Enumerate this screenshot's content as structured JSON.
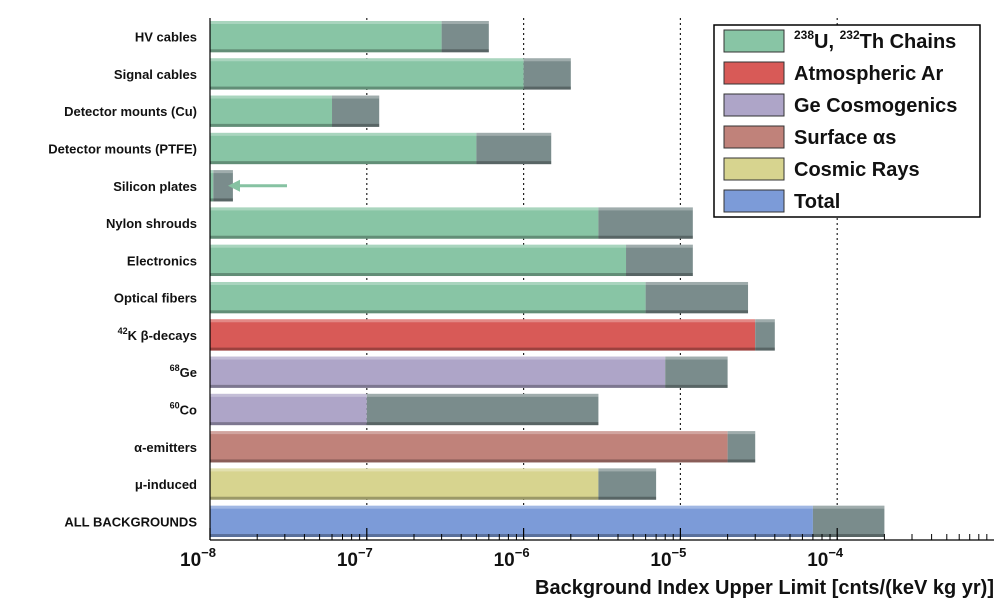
{
  "chart_data": {
    "type": "bar",
    "orientation": "horizontal",
    "x_scale": "log",
    "xlim": [
      1e-08,
      0.001
    ],
    "xlabel": "Background Index Upper Limit [cnts/(keV kg yr)]",
    "x_ticks": [
      {
        "base": "10",
        "exp": "−8"
      },
      {
        "base": "10",
        "exp": "−7"
      },
      {
        "base": "10",
        "exp": "−6"
      },
      {
        "base": "10",
        "exp": "−5"
      },
      {
        "base": "10",
        "exp": "−4"
      }
    ],
    "grid": "vertical dotted lines at decades",
    "legend_position": "top-right",
    "legend": [
      {
        "label": "238U, 232Th Chains",
        "color": "#88c5a5",
        "pre": "",
        "sup1": "238",
        "mid": "U, ",
        "sup2": "232",
        "post": "Th Chains"
      },
      {
        "label": "Atmospheric Ar",
        "color": "#d85a57",
        "pre": "Atmospheric Ar",
        "sup1": "",
        "mid": "",
        "sup2": "",
        "post": ""
      },
      {
        "label": "Ge Cosmogenics",
        "color": "#aea5c8",
        "pre": "Ge Cosmogenics",
        "sup1": "",
        "mid": "",
        "sup2": "",
        "post": ""
      },
      {
        "label": "Surface αs",
        "color": "#c0827a",
        "pre": "Surface αs",
        "sup1": "",
        "mid": "",
        "sup2": "",
        "post": ""
      },
      {
        "label": "Cosmic Rays",
        "color": "#d7d48f",
        "pre": "Cosmic Rays",
        "sup1": "",
        "mid": "",
        "sup2": "",
        "post": ""
      },
      {
        "label": "Total",
        "color": "#7c9bd8",
        "pre": "Total",
        "sup1": "",
        "mid": "",
        "sup2": "",
        "post": ""
      }
    ],
    "uncertainty_color": "#7a8c8c",
    "categories": [
      {
        "sup": "",
        "text": "HV cables",
        "group": "238U, 232Th Chains",
        "value": 3e-07,
        "upper": 6e-07
      },
      {
        "sup": "",
        "text": "Signal cables",
        "group": "238U, 232Th Chains",
        "value": 1e-06,
        "upper": 2e-06
      },
      {
        "sup": "",
        "text": "Detector mounts (Cu)",
        "group": "238U, 232Th Chains",
        "value": 6e-08,
        "upper": 1.2e-07
      },
      {
        "sup": "",
        "text": "Detector mounts (PTFE)",
        "group": "238U, 232Th Chains",
        "value": 5e-07,
        "upper": 1.5e-06
      },
      {
        "sup": "",
        "text": "Silicon plates",
        "group": "238U, 232Th Chains",
        "value": 1.05e-08,
        "upper": 1.4e-08,
        "upper_limit_arrow": true
      },
      {
        "sup": "",
        "text": "Nylon shrouds",
        "group": "238U, 232Th Chains",
        "value": 3e-06,
        "upper": 1.2e-05
      },
      {
        "sup": "",
        "text": "Electronics",
        "group": "238U, 232Th Chains",
        "value": 4.5e-06,
        "upper": 1.2e-05
      },
      {
        "sup": "",
        "text": "Optical fibers",
        "group": "238U, 232Th Chains",
        "value": 6e-06,
        "upper": 2.7e-05
      },
      {
        "sup": "42",
        "text": "K β-decays",
        "group": "Atmospheric Ar",
        "value": 3e-05,
        "upper": 4e-05
      },
      {
        "sup": "68",
        "text": "Ge",
        "group": "Ge Cosmogenics",
        "value": 8e-06,
        "upper": 2e-05
      },
      {
        "sup": "60",
        "text": "Co",
        "group": "Ge Cosmogenics",
        "value": 1e-07,
        "upper": 3e-06
      },
      {
        "sup": "",
        "text": "α-emitters",
        "group": "Surface αs",
        "value": 2e-05,
        "upper": 3e-05
      },
      {
        "sup": "",
        "text": "μ-induced",
        "group": "Cosmic Rays",
        "value": 3e-06,
        "upper": 7e-06
      },
      {
        "sup": "",
        "text": "ALL BACKGROUNDS",
        "group": "Total",
        "value": 7e-05,
        "upper": 0.0002
      }
    ]
  }
}
